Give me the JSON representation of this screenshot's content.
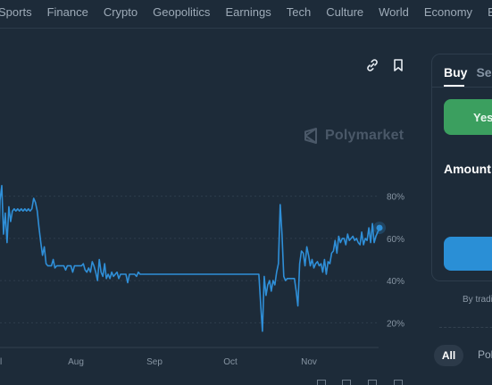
{
  "nav": {
    "items": [
      "Sports",
      "Finance",
      "Crypto",
      "Geopolitics",
      "Earnings",
      "Tech",
      "Culture",
      "World",
      "Economy",
      "E"
    ]
  },
  "watermark": {
    "text": "Polymarket"
  },
  "icons": {
    "link": "link-icon",
    "bookmark": "bookmark-icon",
    "watermark_logo": "polymarket-logo-icon"
  },
  "colors": {
    "background": "#1d2b39",
    "line": "#2f8fd8",
    "yes": "#3b9f5f",
    "trade": "#2a8fd6"
  },
  "chart_data": {
    "type": "line",
    "x_ticks": [
      "l",
      "Aug",
      "Sep",
      "Oct",
      "Nov"
    ],
    "y_ticks": [
      "80%",
      "60%",
      "40%",
      "20%"
    ],
    "ylim": [
      10,
      90
    ],
    "grid": true,
    "y_axis_side": "right",
    "series": [
      {
        "values": [
          30,
          48,
          78,
          85,
          62,
          72,
          58,
          75,
          68,
          73,
          74,
          73,
          74,
          73,
          74,
          73,
          74,
          73,
          74,
          73,
          74,
          79,
          77,
          73,
          65,
          58,
          52,
          56,
          48,
          47,
          47,
          47,
          50,
          46,
          47,
          47,
          47,
          47,
          47,
          45,
          47,
          47,
          47,
          44,
          47,
          47,
          47,
          47,
          47,
          48,
          45,
          44,
          46,
          44,
          49,
          47,
          44,
          40,
          50,
          44,
          42,
          48,
          41,
          43,
          41,
          44,
          42,
          43,
          44,
          41,
          43,
          43,
          43,
          43,
          39,
          43,
          43,
          43,
          43,
          42,
          44,
          43,
          43,
          43,
          43,
          43,
          43,
          43,
          43,
          43,
          43,
          43,
          43,
          43,
          43,
          43,
          43,
          43,
          43,
          43,
          43,
          43,
          43,
          43,
          43,
          43,
          43,
          43,
          43,
          43,
          43,
          43,
          43,
          43,
          43,
          43,
          43,
          43,
          43,
          43,
          43,
          43,
          43,
          43,
          43,
          43,
          43,
          43,
          43,
          43,
          43,
          43,
          43,
          43,
          43,
          43,
          43,
          43,
          43,
          43,
          43,
          43,
          43,
          43,
          43,
          43,
          43,
          43,
          43,
          29,
          16,
          42,
          33,
          38,
          40,
          35,
          40,
          38,
          44,
          48,
          76,
          62,
          42,
          40,
          41,
          41,
          41,
          41,
          41,
          35,
          28,
          48,
          54,
          53,
          47,
          56,
          52,
          47,
          50,
          46,
          48,
          49,
          47,
          48,
          44,
          50,
          43,
          49,
          48,
          53,
          54,
          59,
          53,
          61,
          58,
          60,
          60,
          57,
          62,
          59,
          60,
          61,
          59,
          60,
          58,
          57,
          63,
          57,
          60,
          59,
          65,
          58,
          67,
          58,
          61,
          63,
          65
        ]
      }
    ]
  },
  "panel": {
    "tabs": [
      "Buy",
      "Sell"
    ],
    "yes_label": "Yes",
    "amount_label": "Amount",
    "terms_text": "By trading"
  },
  "filters": {
    "all": "All",
    "next": "Pol"
  }
}
